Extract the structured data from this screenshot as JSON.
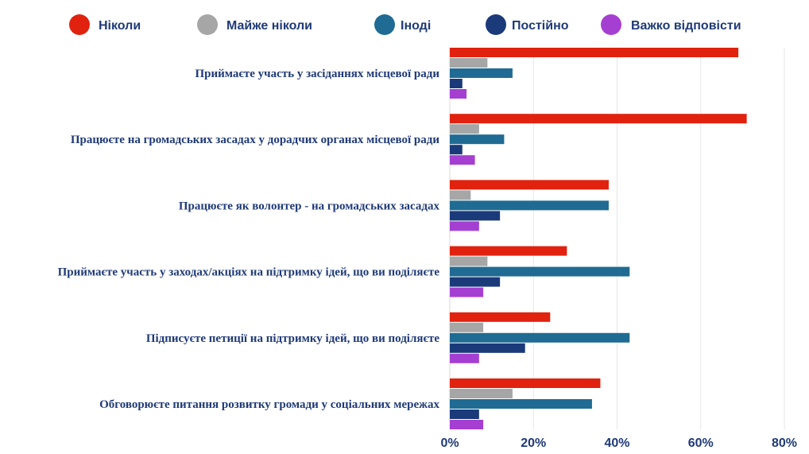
{
  "chart_data": {
    "type": "bar",
    "orientation": "horizontal",
    "title": "",
    "xlabel": "",
    "ylabel": "",
    "legend_position": "top",
    "grid": true,
    "xlim": [
      0,
      80
    ],
    "x_ticks": [
      "0%",
      "20%",
      "40%",
      "60%",
      "80%"
    ],
    "categories": [
      "Приймаєте участь у засіданнях місцевої ради",
      "Працюєте на громадських засадах у дорадчих органах місцевої ради",
      "Працюєте як волонтер - на громадських засадах",
      "Приймаєте участь у заходах/акціях на підтримку ідей, що ви поділяєте",
      "Підписуєте петиції на підтримку ідей, що ви поділяєте",
      "Обговорюєте питання розвитку громади у соціальних мережах"
    ],
    "series": [
      {
        "name": "Ніколи",
        "color": "#e0220f",
        "values": [
          69,
          71,
          38,
          28,
          24,
          36
        ]
      },
      {
        "name": "Майже ніколи",
        "color": "#a6a6a6",
        "values": [
          9,
          7,
          5,
          9,
          8,
          15
        ]
      },
      {
        "name": "Іноді",
        "color": "#1f6b93",
        "values": [
          15,
          13,
          38,
          43,
          43,
          34
        ]
      },
      {
        "name": "Постійно",
        "color": "#1b3a7a",
        "values": [
          3,
          3,
          12,
          12,
          18,
          7
        ]
      },
      {
        "name": "Важко відповісти",
        "color": "#a53fd1",
        "values": [
          4,
          6,
          7,
          8,
          7,
          8
        ]
      }
    ]
  }
}
